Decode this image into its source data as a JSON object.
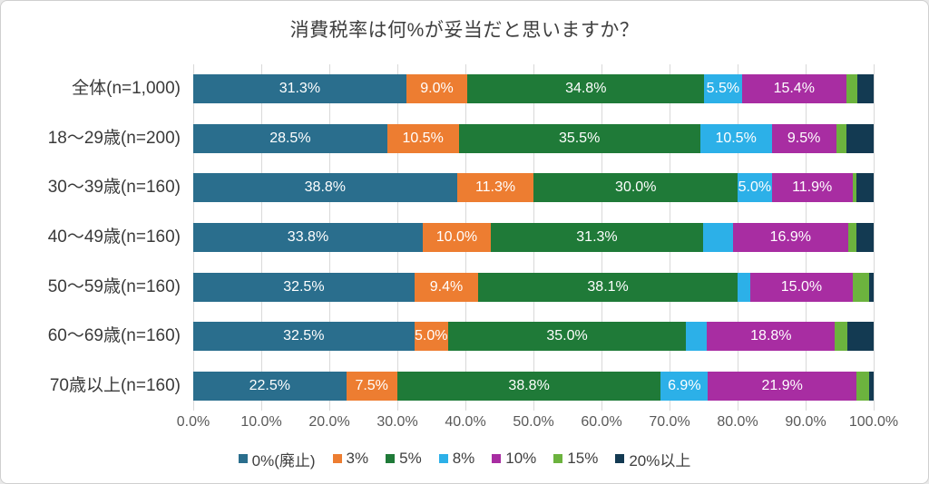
{
  "title": "消費税率は何%が妥当だと思いますか？",
  "chart_data": {
    "type": "bar",
    "orientation": "horizontal",
    "stacked": true,
    "title": "消費税率は何%が妥当だと思いますか？",
    "categories": [
      "全体(n=1,000)",
      "18～29歳(n=200)",
      "30～39歳(n=160)",
      "40～49歳(n=160)",
      "50～59歳(n=160)",
      "60～69歳(n=160)",
      "70歳以上(n=160)"
    ],
    "series": [
      {
        "name": "0%(廃止)",
        "color": "#2A6E8D",
        "values": [
          31.3,
          28.5,
          38.8,
          33.8,
          32.5,
          32.5,
          22.5
        ]
      },
      {
        "name": "3%",
        "color": "#ED7D31",
        "values": [
          9.0,
          10.5,
          11.3,
          10.0,
          9.4,
          5.0,
          7.5
        ]
      },
      {
        "name": "5%",
        "color": "#1F7A38",
        "values": [
          34.8,
          35.5,
          30.0,
          31.3,
          38.1,
          35.0,
          38.8
        ]
      },
      {
        "name": "8%",
        "color": "#2CB0E8",
        "values": [
          5.5,
          10.5,
          5.0,
          4.4,
          1.9,
          3.1,
          6.9
        ]
      },
      {
        "name": "10%",
        "color": "#A82DA2",
        "values": [
          15.4,
          9.5,
          11.9,
          16.9,
          15.0,
          18.8,
          21.9
        ]
      },
      {
        "name": "15%",
        "color": "#6CB33E",
        "values": [
          1.6,
          1.5,
          0.6,
          1.3,
          2.5,
          1.9,
          1.9
        ]
      },
      {
        "name": "20%以上",
        "color": "#133A52",
        "values": [
          2.4,
          4.0,
          2.5,
          2.5,
          0.6,
          3.8,
          0.6
        ]
      }
    ],
    "x_ticks": [
      "0.0%",
      "10.0%",
      "20.0%",
      "30.0%",
      "40.0%",
      "50.0%",
      "60.0%",
      "70.0%",
      "80.0%",
      "90.0%",
      "100.0%"
    ],
    "xlim": [
      0,
      100
    ],
    "grid": true,
    "legend_position": "bottom",
    "data_label_threshold": 5.0,
    "data_label_color": "#ffffff",
    "gridline_color": "#d9d9d9"
  }
}
